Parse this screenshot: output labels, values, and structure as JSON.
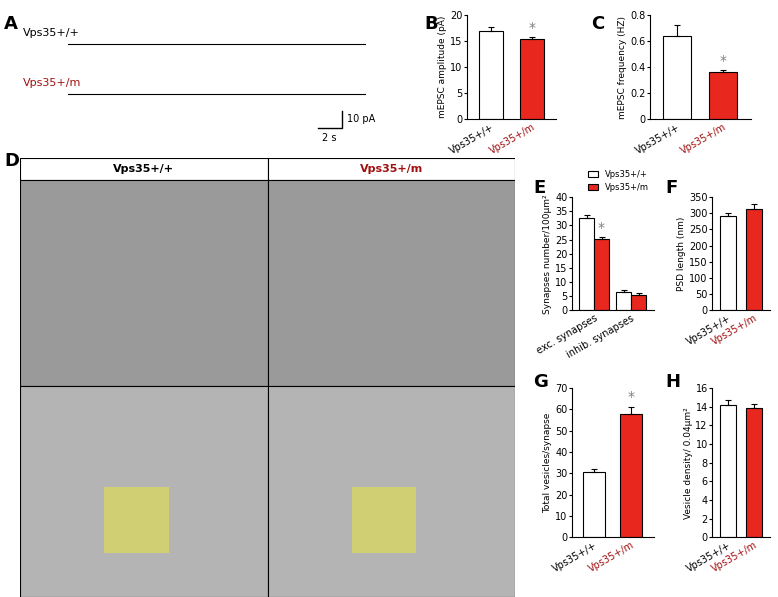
{
  "traces": {
    "panel": "A",
    "labels": [
      "Vps35+/+",
      "Vps35+/m"
    ],
    "scale_bar": {
      "y_label": "10 pA",
      "x_label": "2 s"
    }
  },
  "micrographs": {
    "panel": "D",
    "columns": [
      "Vps35+/+",
      "Vps35+/m"
    ]
  },
  "chart_data": [
    {
      "panel": "B",
      "type": "bar",
      "categories": [
        "Vps35+/+",
        "Vps35+/m"
      ],
      "values": [
        17.0,
        15.3
      ],
      "errors": [
        0.6,
        0.5
      ],
      "colors": [
        "#ffffff",
        "#e8281e"
      ],
      "y_label": "mEPSC amplitude (pA)",
      "ylim": [
        0,
        20
      ],
      "yticks": [
        0,
        5,
        10,
        15,
        20
      ],
      "annotations": [
        {
          "text": "*",
          "category": "Vps35+/m"
        }
      ]
    },
    {
      "panel": "C",
      "type": "bar",
      "categories": [
        "Vps35+/+",
        "Vps35+/m"
      ],
      "values": [
        0.64,
        0.36
      ],
      "errors": [
        0.08,
        0.02
      ],
      "colors": [
        "#ffffff",
        "#e8281e"
      ],
      "y_label": "mEPSC frequency (HZ)",
      "ylim": [
        0,
        0.8
      ],
      "yticks": [
        0,
        0.2,
        0.4,
        0.6,
        0.8
      ],
      "annotations": [
        {
          "text": "*",
          "category": "Vps35+/m"
        }
      ]
    },
    {
      "panel": "E",
      "type": "bar",
      "categories": [
        "exc. synapses",
        "inhib. synapses"
      ],
      "series": [
        {
          "name": "Vps35+/+",
          "color": "#ffffff",
          "values": [
            32.5,
            6.5
          ],
          "errors": [
            1.0,
            0.8
          ]
        },
        {
          "name": "Vps35+/m",
          "color": "#e8281e",
          "values": [
            25.2,
            5.5
          ],
          "errors": [
            0.6,
            0.5
          ]
        }
      ],
      "y_label": "Synapses number/100µm²",
      "ylim": [
        0,
        40
      ],
      "yticks": [
        0,
        5,
        10,
        15,
        20,
        25,
        30,
        35,
        40
      ],
      "legend": "upper right",
      "annotations": [
        {
          "text": "*",
          "category": "exc. synapses",
          "series": "Vps35+/m"
        }
      ]
    },
    {
      "panel": "F",
      "type": "bar",
      "categories": [
        "Vps35+/+",
        "Vps35+/m"
      ],
      "values": [
        290,
        312
      ],
      "errors": [
        12,
        15
      ],
      "colors": [
        "#ffffff",
        "#e8281e"
      ],
      "y_label": "PSD length (nm)",
      "ylim": [
        0,
        350
      ],
      "yticks": [
        0,
        50,
        100,
        150,
        200,
        250,
        300,
        350
      ]
    },
    {
      "panel": "G",
      "type": "bar",
      "categories": [
        "Vps35+/+",
        "Vps35+/m"
      ],
      "values": [
        30.5,
        58.0
      ],
      "errors": [
        1.5,
        3.0
      ],
      "colors": [
        "#ffffff",
        "#e8281e"
      ],
      "y_label": "Total vesicles/synapse",
      "ylim": [
        0,
        70
      ],
      "yticks": [
        0,
        10,
        20,
        30,
        40,
        50,
        60,
        70
      ],
      "annotations": [
        {
          "text": "*",
          "category": "Vps35+/m"
        }
      ]
    },
    {
      "panel": "H",
      "type": "bar",
      "categories": [
        "Vps35+/+",
        "Vps35+/m"
      ],
      "values": [
        14.2,
        13.9
      ],
      "errors": [
        0.5,
        0.4
      ],
      "colors": [
        "#ffffff",
        "#e8281e"
      ],
      "y_label": "Vesicle density/ 0.04µm²",
      "ylim": [
        0,
        16
      ],
      "yticks": [
        0,
        2,
        4,
        6,
        8,
        10,
        12,
        14,
        16
      ]
    }
  ]
}
